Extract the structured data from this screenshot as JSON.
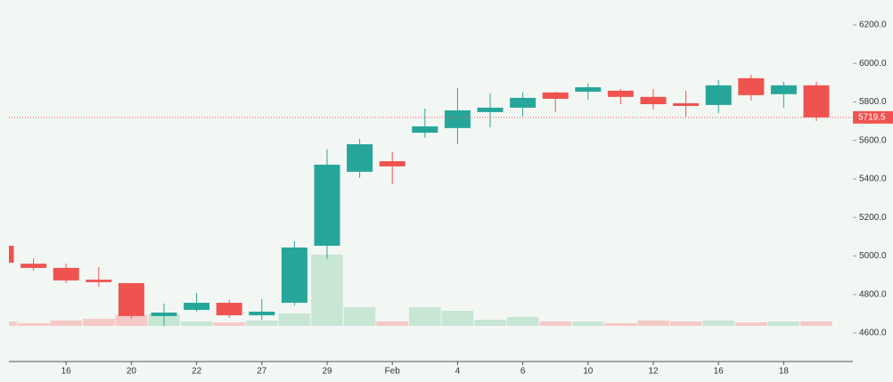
{
  "chart_data": {
    "type": "candlestick",
    "categories": [
      null,
      null,
      "16",
      null,
      "20",
      null,
      "22",
      null,
      "27",
      null,
      "29",
      null,
      "Feb",
      null,
      "4",
      null,
      "6",
      null,
      "10",
      null,
      "12",
      null,
      "16",
      null,
      "18",
      null
    ],
    "open": [
      5053,
      4960,
      4938,
      4877,
      4859,
      4688,
      4720,
      4757,
      4692,
      4757,
      5053,
      5437,
      5492,
      5640,
      5664,
      5747,
      5770,
      5849,
      5853,
      5858,
      5826,
      5793,
      5784,
      5923,
      5840,
      5886
    ],
    "high": [
      5055,
      4988,
      4961,
      4942,
      4859,
      4753,
      4808,
      4771,
      4776,
      5076,
      5553,
      5608,
      5539,
      5765,
      5872,
      5844,
      5849,
      5853,
      5895,
      5867,
      5867,
      5858,
      5913,
      5941,
      5904,
      5904
    ],
    "low": [
      4965,
      4924,
      4859,
      4840,
      4674,
      4637,
      4711,
      4679,
      4669,
      4743,
      4984,
      5405,
      5372,
      5613,
      5580,
      5668,
      5724,
      5747,
      5812,
      5788,
      5761,
      5724,
      5742,
      5807,
      5770,
      5700
    ],
    "close": [
      4965,
      4938,
      4873,
      4864,
      4688,
      4706,
      4757,
      4692,
      4711,
      5044,
      5474,
      5580,
      5465,
      5673,
      5756,
      5770,
      5821,
      5816,
      5876,
      5826,
      5788,
      5779,
      5886,
      5835,
      5886,
      5719.5
    ],
    "volume": [
      5,
      3,
      6,
      8,
      12,
      13,
      5,
      4,
      6,
      14,
      80,
      21,
      5,
      21,
      17,
      7,
      10,
      5,
      5,
      3,
      6,
      5,
      6,
      4,
      5,
      5
    ],
    "volume_lim": [
      0,
      100
    ],
    "ylim": [
      4452,
      6329
    ],
    "yticks": [
      {
        "value": 4600,
        "label": "4600.0"
      },
      {
        "value": 4800,
        "label": "4800.0"
      },
      {
        "value": 5000,
        "label": "5000.0"
      },
      {
        "value": 5200,
        "label": "5200.0"
      },
      {
        "value": 5400,
        "label": "5400.0"
      },
      {
        "value": 5600,
        "label": "5600.0"
      },
      {
        "value": 5800,
        "label": "5800.0"
      },
      {
        "value": 6000,
        "label": "6000.0"
      },
      {
        "value": 6200,
        "label": "6200.0"
      }
    ],
    "last_price": 5719.5,
    "up_color": "#26a69a",
    "down_color": "#ef5350",
    "up_volume_color": "#c8e6d4",
    "down_volume_color": "#f5c9c7"
  }
}
